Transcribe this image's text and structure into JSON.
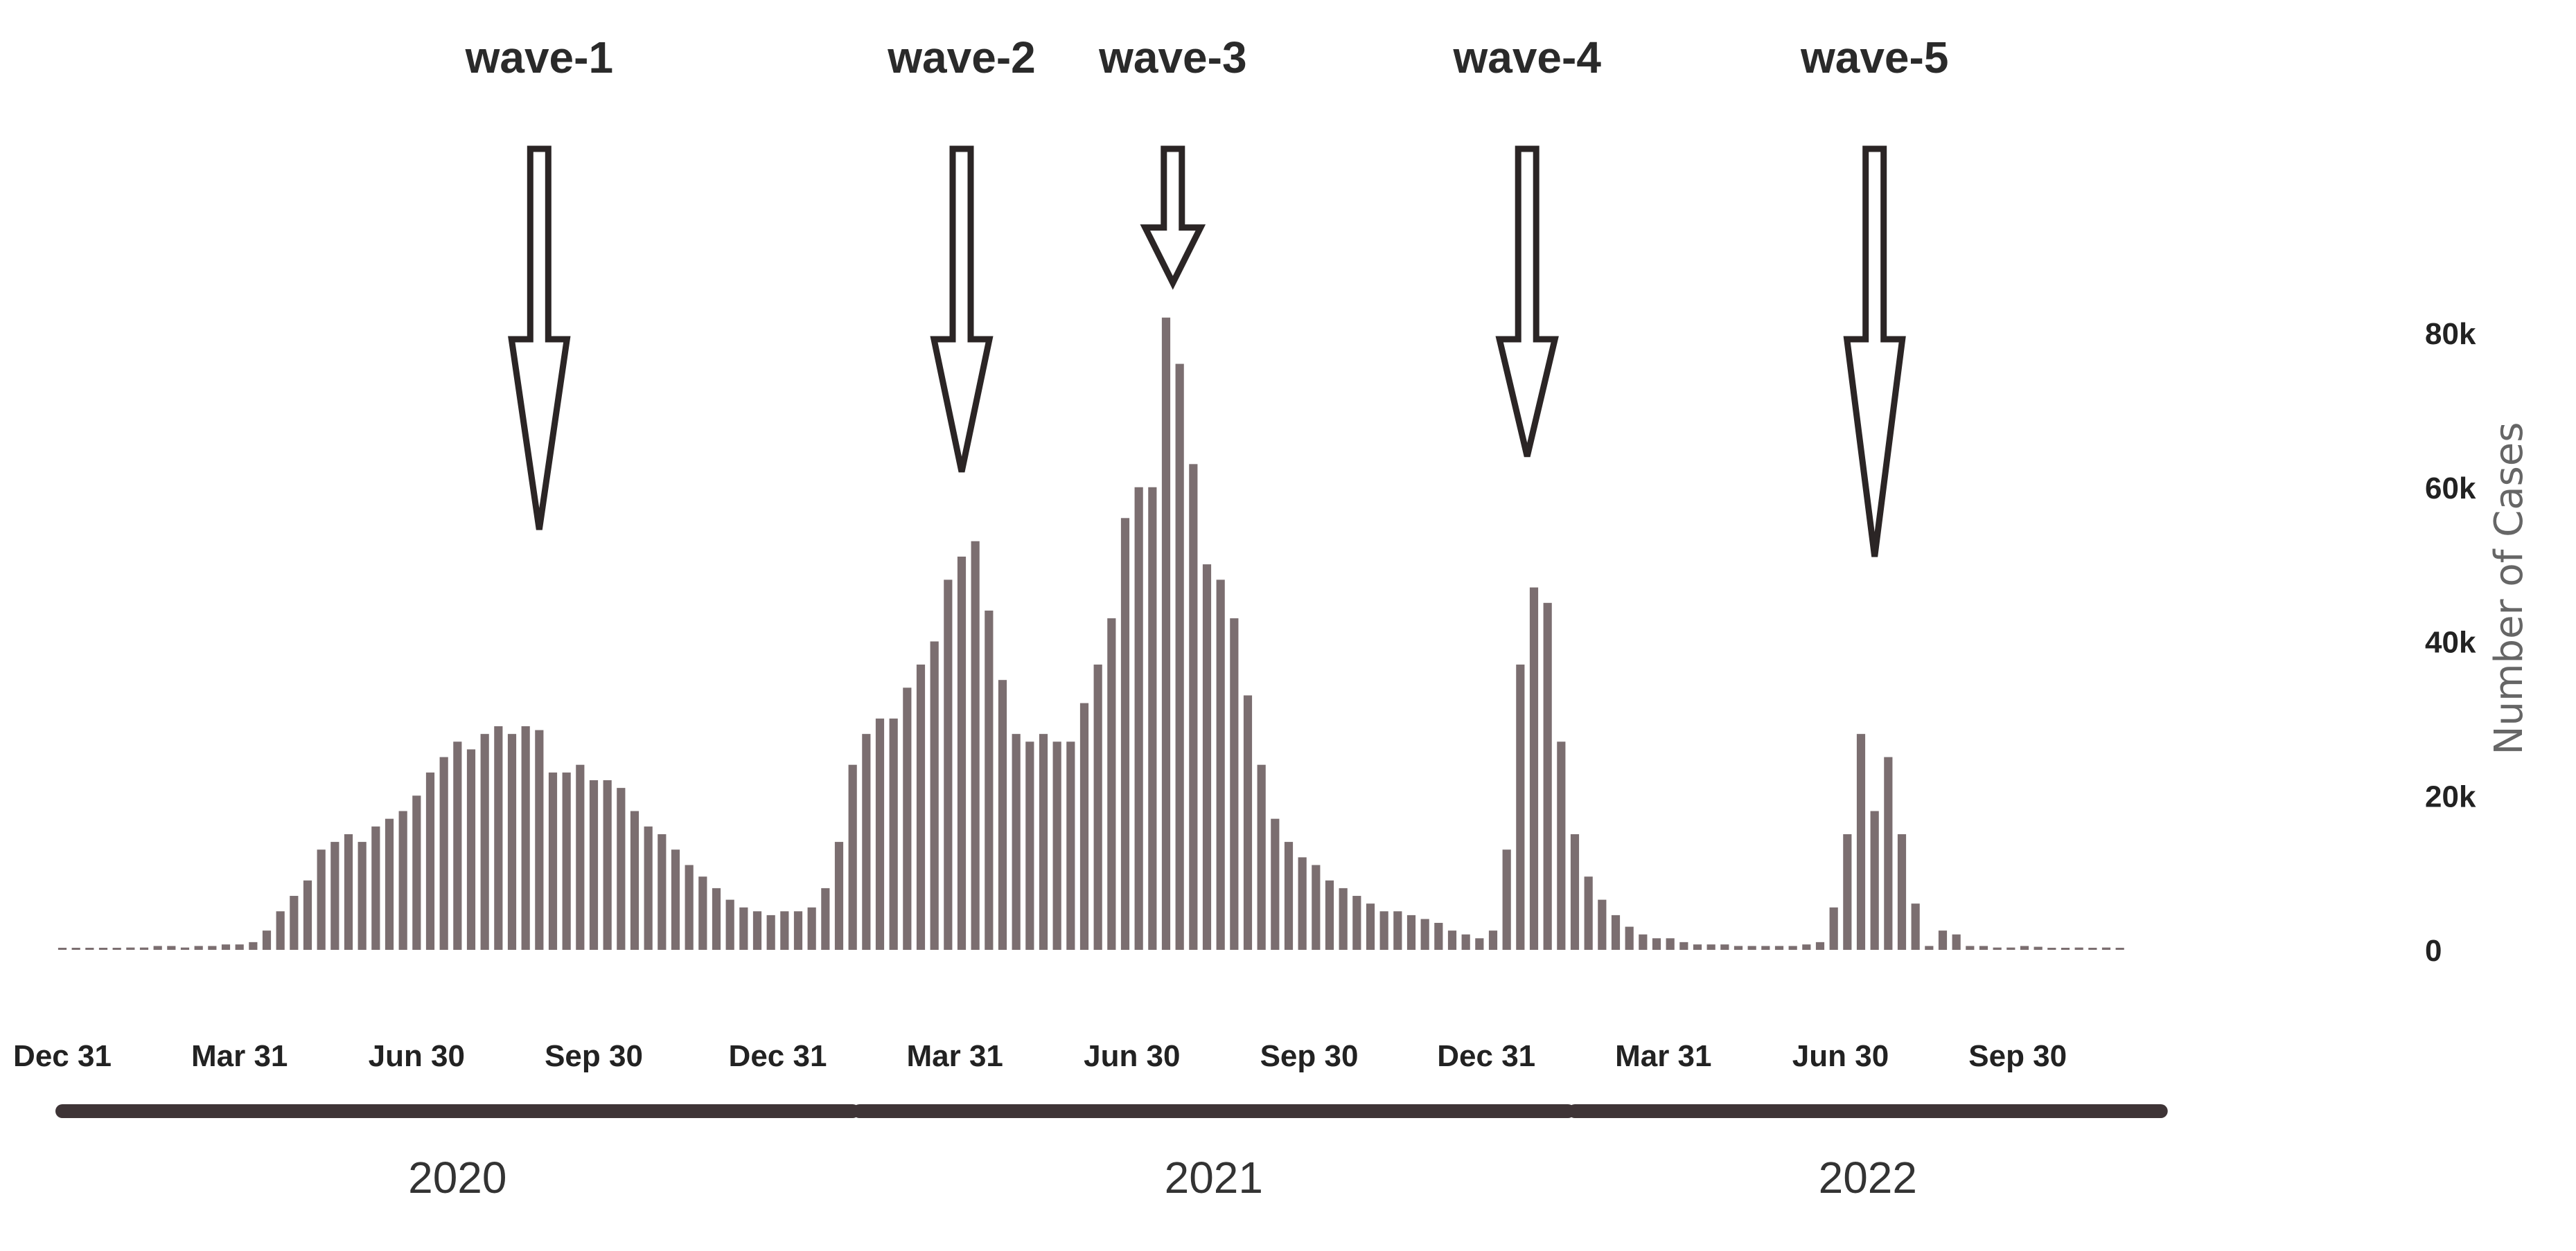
{
  "chart_data": {
    "type": "bar",
    "title": "",
    "xlabel": "",
    "ylabel": "Number of Cases",
    "ylim": [
      0,
      90000
    ],
    "yticks": [
      0,
      20000,
      40000,
      60000,
      80000
    ],
    "ytick_labels": [
      "0",
      "20k",
      "40k",
      "60k",
      "80k"
    ],
    "bar_color": "#7b6e70",
    "grid": false,
    "legend": "none",
    "x_start_index": 0,
    "x_end_index": 150,
    "xticks": [
      {
        "label": "Dec 31",
        "index": 0
      },
      {
        "label": "Mar 31",
        "index": 13
      },
      {
        "label": "Jun 30",
        "index": 26
      },
      {
        "label": "Sep 30",
        "index": 39
      },
      {
        "label": "Dec 31",
        "index": 52.5
      },
      {
        "label": "Mar 31",
        "index": 65.5
      },
      {
        "label": "Jun 30",
        "index": 78.5
      },
      {
        "label": "Sep 30",
        "index": 91.5
      },
      {
        "label": "Dec 31",
        "index": 104.5
      },
      {
        "label": "Mar 31",
        "index": 117.5
      },
      {
        "label": "Jun 30",
        "index": 130.5
      },
      {
        "label": "Sep 30",
        "index": 143.5
      }
    ],
    "years": [
      {
        "label": "2020",
        "start": 0,
        "end": 58
      },
      {
        "label": "2021",
        "start": 58.5,
        "end": 110.5
      },
      {
        "label": "2022",
        "start": 111,
        "end": 154
      }
    ],
    "values": [
      0,
      0,
      0,
      0,
      0,
      300,
      300,
      500,
      500,
      300,
      500,
      500,
      700,
      700,
      1000,
      2500,
      5000,
      7000,
      9000,
      13000,
      14000,
      15000,
      14000,
      16000,
      17000,
      18000,
      20000,
      23000,
      25000,
      27000,
      26000,
      28000,
      29000,
      28000,
      29000,
      28500,
      23000,
      23000,
      24000,
      22000,
      22000,
      21000,
      18000,
      16000,
      15000,
      13000,
      11000,
      9500,
      8000,
      6500,
      5500,
      5000,
      4500,
      5000,
      5000,
      5500,
      8000,
      14000,
      24000,
      28000,
      30000,
      30000,
      34000,
      37000,
      40000,
      48000,
      51000,
      53000,
      44000,
      35000,
      28000,
      27000,
      28000,
      27000,
      27000,
      32000,
      37000,
      43000,
      56000,
      60000,
      60000,
      82000,
      76000,
      63000,
      50000,
      48000,
      43000,
      33000,
      24000,
      17000,
      14000,
      12000,
      11000,
      9000,
      8000,
      7000,
      6000,
      5000,
      5000,
      4500,
      4000,
      3500,
      2500,
      2000,
      1500,
      2500,
      13000,
      37000,
      47000,
      45000,
      27000,
      15000,
      9500,
      6500,
      4500,
      3000,
      2000,
      1500,
      1500,
      1000,
      700,
      700,
      700,
      500,
      500,
      500,
      500,
      500,
      700,
      1000,
      5500,
      15000,
      28000,
      18000,
      25000,
      15000,
      6000,
      500,
      2500,
      2000,
      500,
      500,
      300,
      300,
      500,
      400,
      200,
      200,
      300,
      200,
      300,
      200
    ],
    "annotations": [
      {
        "text": "wave-1",
        "index": 35,
        "tip_value": 54500
      },
      {
        "text": "wave-2",
        "index": 66,
        "tip_value": 62000
      },
      {
        "text": "wave-3",
        "index": 81.5,
        "tip_value": 86500
      },
      {
        "text": "wave-4",
        "index": 107.5,
        "tip_value": 64000
      },
      {
        "text": "wave-5",
        "index": 133,
        "tip_value": 51000
      }
    ]
  }
}
